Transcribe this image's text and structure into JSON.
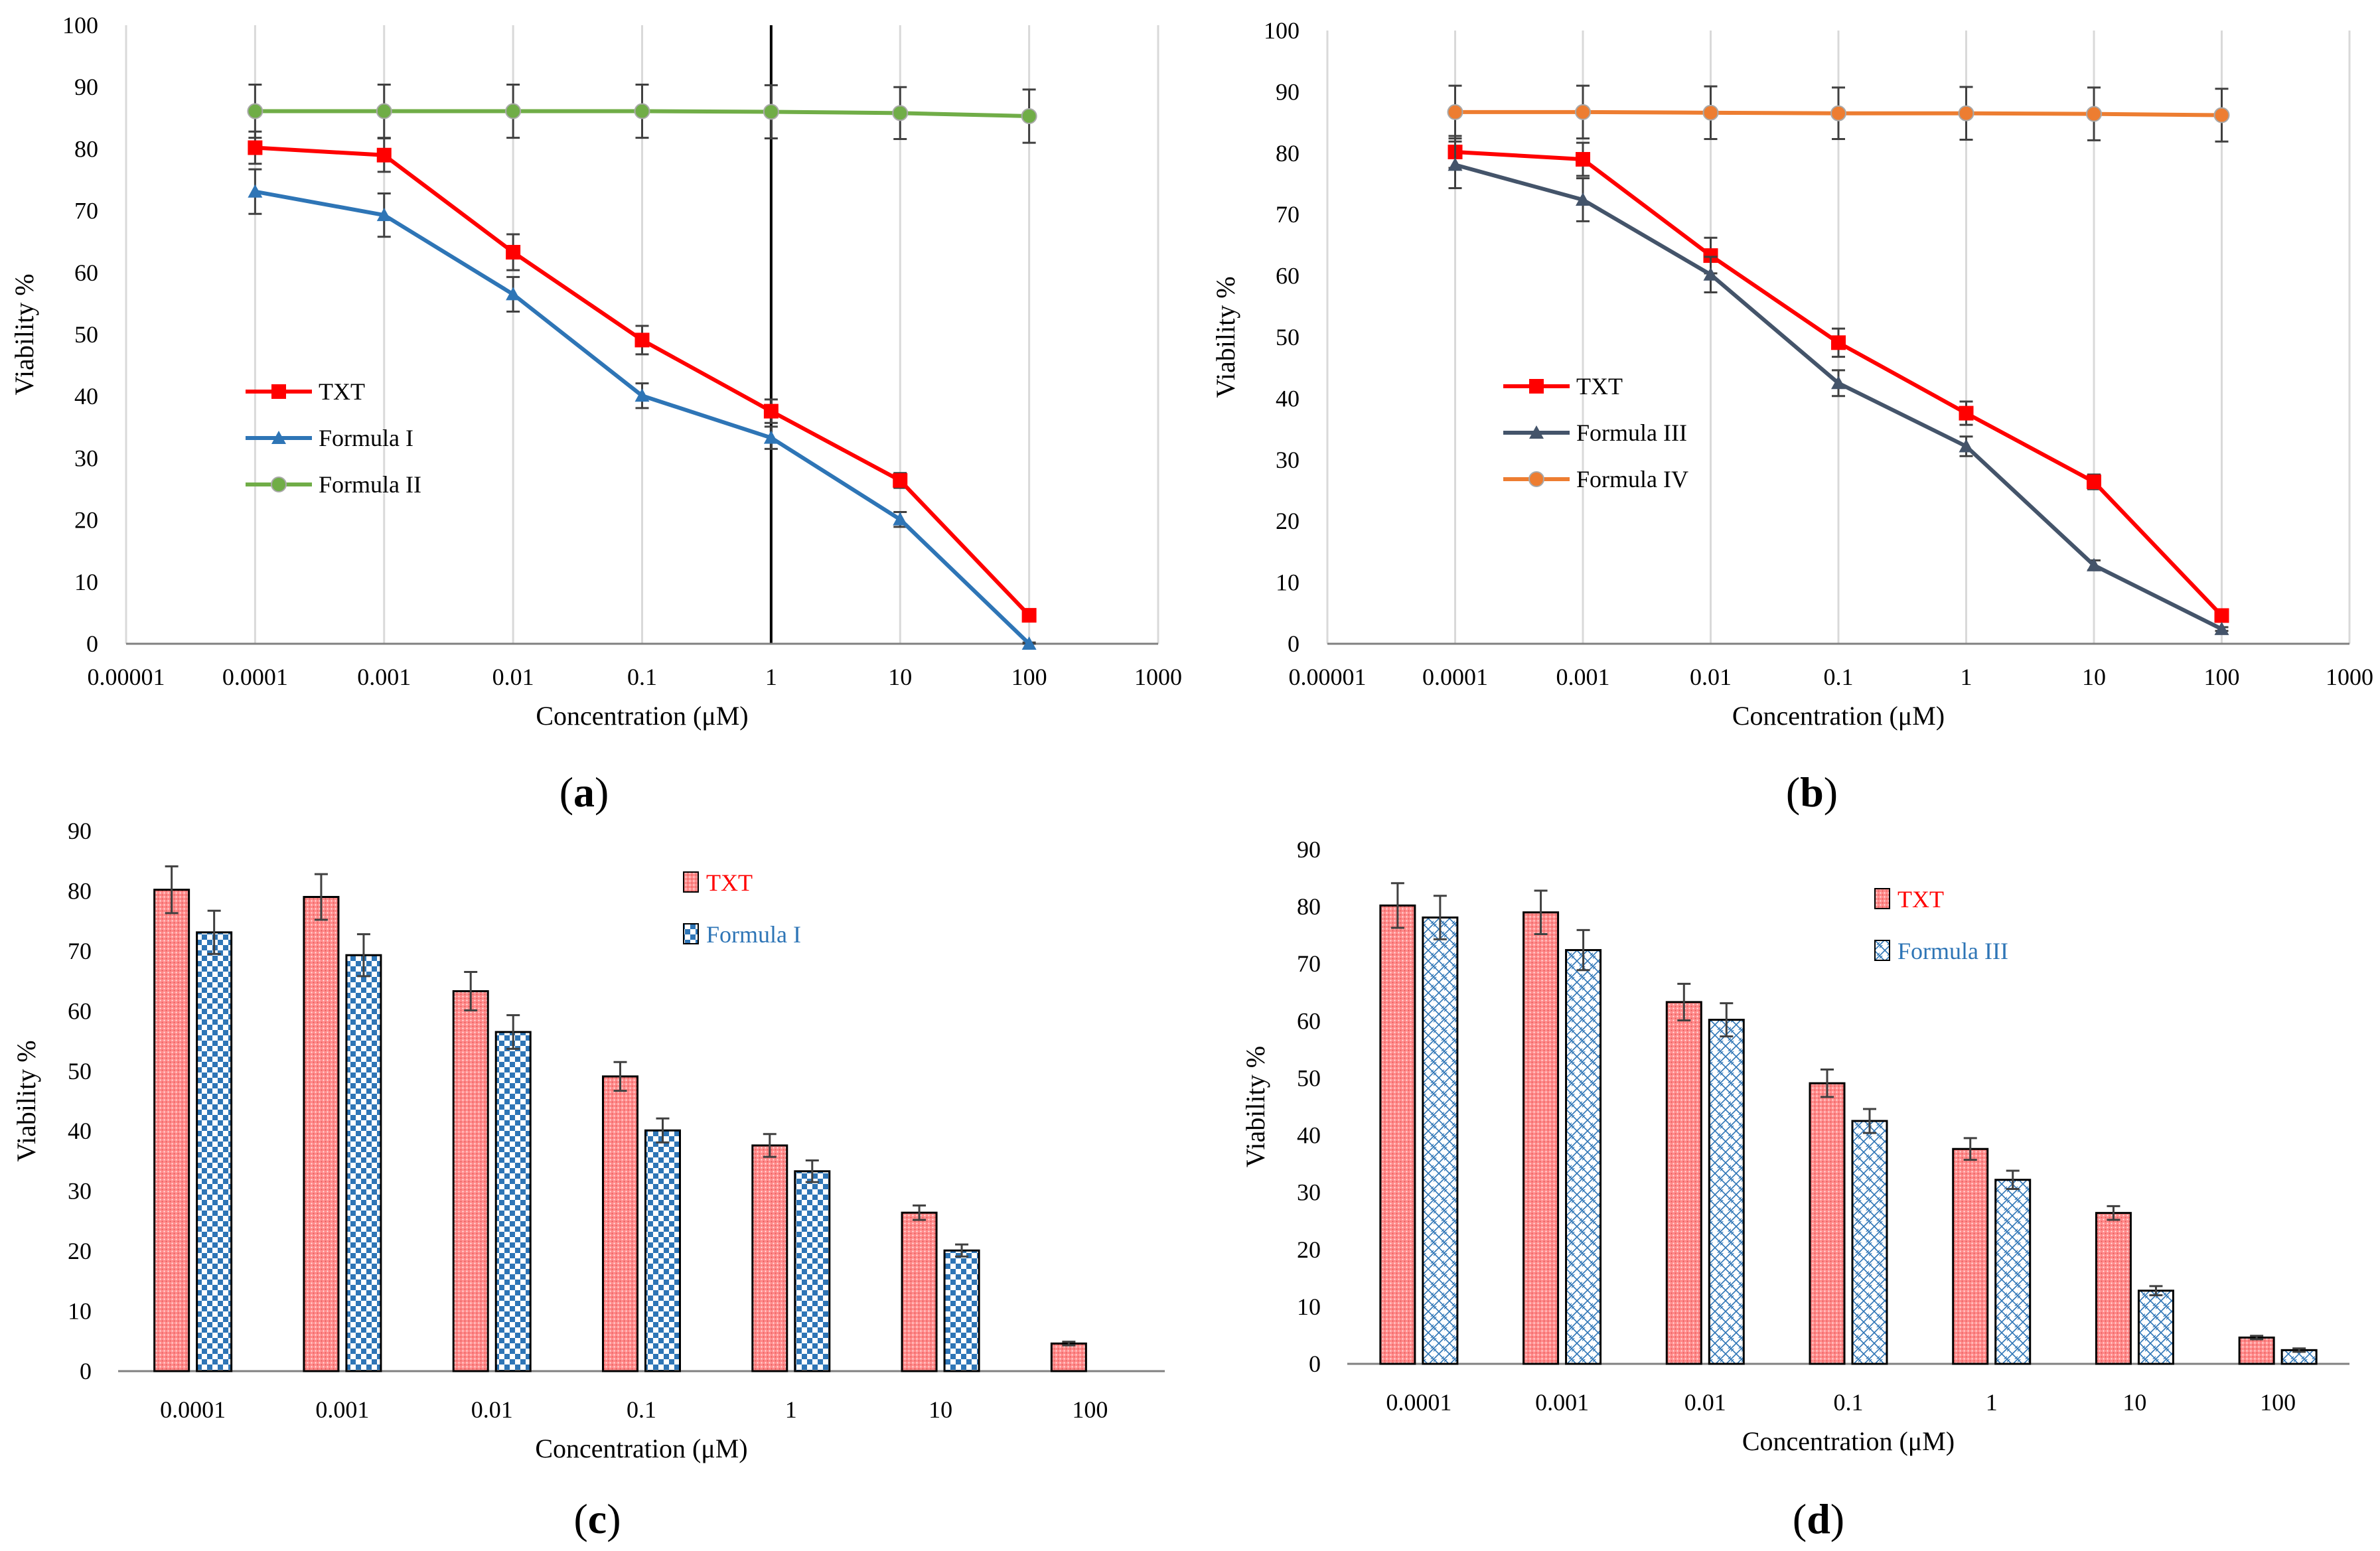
{
  "colors": {
    "txt": "#ff0000",
    "formula1": "#2e75b6",
    "formula2": "#70ad47",
    "formula3": "#44546a",
    "formula4": "#ed7d31",
    "bar_txt_fill": "#ff8b8b",
    "bar_blue": "#2e75b6",
    "grid": "#d9d9d9",
    "axis": "#808080"
  },
  "chart_data": [
    {
      "panel": "a",
      "caption_text": "a",
      "type": "line",
      "xscale": "log",
      "xticks": [
        "0.00001",
        "0.0001",
        "0.001",
        "0.01",
        "0.1",
        "1",
        "10",
        "100",
        "1000"
      ],
      "x": [
        0.0001,
        0.001,
        0.01,
        0.1,
        1,
        10,
        100
      ],
      "ylim": [
        0,
        100
      ],
      "yticks": [
        "0",
        "10",
        "20",
        "30",
        "40",
        "50",
        "60",
        "70",
        "80",
        "90",
        "100"
      ],
      "xlabel": "Concentration (μM)",
      "ylabel": "Viability %",
      "legend_position": "center-left",
      "highlight_x": 1,
      "series": [
        {
          "name": "TXT",
          "color_key": "txt",
          "marker": "square",
          "values": [
            80.2,
            79.0,
            63.3,
            49.1,
            37.6,
            26.4,
            4.6
          ],
          "errors": [
            2.6,
            2.7,
            2.9,
            2.3,
            1.9,
            1.2,
            0.4
          ]
        },
        {
          "name": "Formula I",
          "color_key": "formula1",
          "marker": "triangle",
          "values": [
            73.1,
            69.3,
            56.5,
            40.1,
            33.3,
            20.1,
            0.0
          ],
          "errors": [
            3.6,
            3.5,
            2.8,
            2.0,
            1.8,
            1.2,
            0.2
          ]
        },
        {
          "name": "Formula II",
          "color_key": "formula2",
          "marker": "circle",
          "values": [
            86.1,
            86.1,
            86.1,
            86.1,
            86.0,
            85.8,
            85.3
          ],
          "errors": [
            4.3,
            4.3,
            4.3,
            4.3,
            4.3,
            4.2,
            4.3
          ]
        }
      ]
    },
    {
      "panel": "b",
      "caption_text": "b",
      "type": "line",
      "xscale": "log",
      "xticks": [
        "0.00001",
        "0.0001",
        "0.001",
        "0.01",
        "0.1",
        "1",
        "10",
        "100",
        "1000"
      ],
      "x": [
        0.0001,
        0.001,
        0.01,
        0.1,
        1,
        10,
        100
      ],
      "ylim": [
        0,
        100
      ],
      "yticks": [
        "0",
        "10",
        "20",
        "30",
        "40",
        "50",
        "60",
        "70",
        "80",
        "90",
        "100"
      ],
      "xlabel": "Concentration (μM)",
      "ylabel": "Viability %",
      "legend_position": "center-left",
      "series": [
        {
          "name": "TXT",
          "color_key": "txt",
          "marker": "square",
          "values": [
            80.2,
            79.0,
            63.3,
            49.1,
            37.6,
            26.4,
            4.6
          ],
          "errors": [
            2.6,
            2.7,
            2.9,
            2.3,
            1.9,
            1.2,
            0.4
          ]
        },
        {
          "name": "Formula III",
          "color_key": "formula3",
          "marker": "triangle",
          "values": [
            78.1,
            72.4,
            60.2,
            42.5,
            32.2,
            12.8,
            2.4
          ],
          "errors": [
            3.8,
            3.5,
            2.9,
            2.1,
            1.6,
            0.8,
            0.3
          ]
        },
        {
          "name": "Formula IV",
          "color_key": "formula4",
          "marker": "circle",
          "values": [
            86.7,
            86.7,
            86.6,
            86.5,
            86.5,
            86.4,
            86.2
          ],
          "errors": [
            4.3,
            4.3,
            4.3,
            4.2,
            4.3,
            4.3,
            4.3
          ]
        }
      ]
    },
    {
      "panel": "c",
      "caption_text": "c",
      "type": "bar",
      "categories": [
        "0.0001",
        "0.001",
        "0.01",
        "0.1",
        "1",
        "10",
        "100"
      ],
      "ylim": [
        0,
        90
      ],
      "yticks": [
        "0",
        "10",
        "20",
        "30",
        "40",
        "50",
        "60",
        "70",
        "80",
        "90"
      ],
      "xlabel": "Concentration (μM)",
      "ylabel": "Viability %",
      "legend_position": "top-right",
      "series": [
        {
          "name": "TXT",
          "color_key": "txt",
          "pattern": "dots-red",
          "values": [
            80.2,
            79.0,
            63.3,
            49.1,
            37.6,
            26.4,
            4.6
          ],
          "errors": [
            3.9,
            3.8,
            3.2,
            2.4,
            1.9,
            1.2,
            0.3
          ]
        },
        {
          "name": "Formula I",
          "color_key": "formula1",
          "pattern": "checker-blue",
          "values": [
            73.1,
            69.3,
            56.5,
            40.1,
            33.3,
            20.1,
            null
          ],
          "errors": [
            3.6,
            3.5,
            2.8,
            2.0,
            1.8,
            1.0,
            null
          ]
        }
      ]
    },
    {
      "panel": "d",
      "caption_text": "d",
      "type": "bar",
      "categories": [
        "0.0001",
        "0.001",
        "0.01",
        "0.1",
        "1",
        "10",
        "100"
      ],
      "ylim": [
        0,
        90
      ],
      "yticks": [
        "0",
        "10",
        "20",
        "30",
        "40",
        "50",
        "60",
        "70",
        "80",
        "90"
      ],
      "xlabel": "Concentration (μM)",
      "ylabel": "Viability %",
      "legend_position": "top-right",
      "series": [
        {
          "name": "TXT",
          "color_key": "txt",
          "pattern": "dots-red",
          "values": [
            80.2,
            79.0,
            63.3,
            49.1,
            37.6,
            26.4,
            4.6
          ],
          "errors": [
            3.9,
            3.8,
            3.2,
            2.4,
            1.9,
            1.2,
            0.3
          ]
        },
        {
          "name": "Formula III",
          "color_key": "formula1",
          "pattern": "diamond-blue",
          "values": [
            78.1,
            72.4,
            60.2,
            42.5,
            32.2,
            12.8,
            2.4
          ],
          "errors": [
            3.8,
            3.5,
            2.9,
            2.1,
            1.6,
            0.8,
            0.3
          ]
        }
      ]
    }
  ]
}
